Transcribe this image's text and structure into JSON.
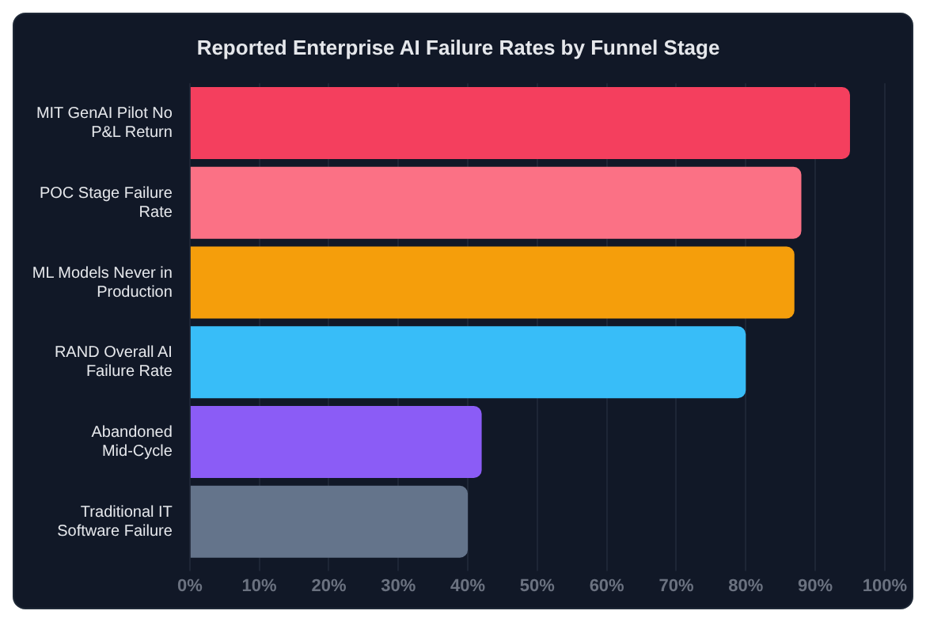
{
  "chart_data": {
    "type": "bar",
    "orientation": "horizontal",
    "title": "Reported Enterprise AI Failure Rates by Funnel Stage",
    "categories": [
      "MIT GenAI Pilot No P&L Return",
      "POC Stage Failure Rate",
      "ML Models Never in Production",
      "RAND Overall AI Failure Rate",
      "Abandoned Mid-Cycle",
      "Traditional IT Software Failure"
    ],
    "values": [
      95,
      88,
      87,
      80,
      42,
      40
    ],
    "colors": [
      "#f43f5e",
      "#fb7185",
      "#f59e0b",
      "#38bdf8",
      "#8b5cf6",
      "#64748b"
    ],
    "xlim": [
      0,
      100
    ],
    "xticks": [
      {
        "value": 0,
        "label": "0%"
      },
      {
        "value": 10,
        "label": "10%"
      },
      {
        "value": 20,
        "label": "20%"
      },
      {
        "value": 30,
        "label": "30%"
      },
      {
        "value": 40,
        "label": "40%"
      },
      {
        "value": 50,
        "label": "50%"
      },
      {
        "value": 60,
        "label": "60%"
      },
      {
        "value": 70,
        "label": "70%"
      },
      {
        "value": 80,
        "label": "80%"
      },
      {
        "value": 90,
        "label": "90%"
      },
      {
        "value": 100,
        "label": "100%"
      }
    ],
    "grid": "x",
    "legend": false
  }
}
